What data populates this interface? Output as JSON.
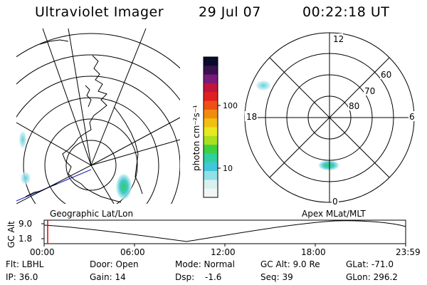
{
  "header": {
    "instrument": "Ultraviolet Imager",
    "date": "29 Jul 07",
    "time": "00:22:18 UT"
  },
  "colorbar": {
    "label": "photon cm⁻²s⁻¹",
    "ticks": [
      "100",
      "10"
    ],
    "colors": [
      "#0a0a2a",
      "#3a1050",
      "#7a1a7a",
      "#c0143c",
      "#e02020",
      "#f05018",
      "#f08c10",
      "#f0c010",
      "#e8e820",
      "#a8e020",
      "#40d040",
      "#30d0a0",
      "#40c8d8",
      "#90e0e8",
      "#d8f0f0",
      "#f2f6f6"
    ]
  },
  "left_map": {
    "label": "Geographic Lat/Lon"
  },
  "right_map": {
    "label": "Apex MLat/MLT",
    "mlt_labels": [
      "12",
      "18",
      "6",
      "0"
    ],
    "lat_labels": [
      "60",
      "70",
      "80"
    ]
  },
  "altitude_plot": {
    "ylabel": "GC Alt",
    "yticks": [
      "9.0",
      "1.8"
    ],
    "xticks": [
      "00:00",
      "06:00",
      "12:00",
      "18:00",
      "23:59"
    ],
    "marker_color": "#e00000"
  },
  "info": {
    "flt": "Flt: LBHL",
    "ip": "IP: 36.0",
    "door": "Door: Open",
    "gain": "Gain: 14",
    "mode": "Mode: Normal",
    "dsp_label": "Dsp:",
    "dsp_value": "-1.6",
    "gc_alt": "GC Alt: 9.0 Re",
    "seq": "Seq: 39",
    "glat": "GLat: -71.0",
    "glon": "GLon: 296.2"
  }
}
